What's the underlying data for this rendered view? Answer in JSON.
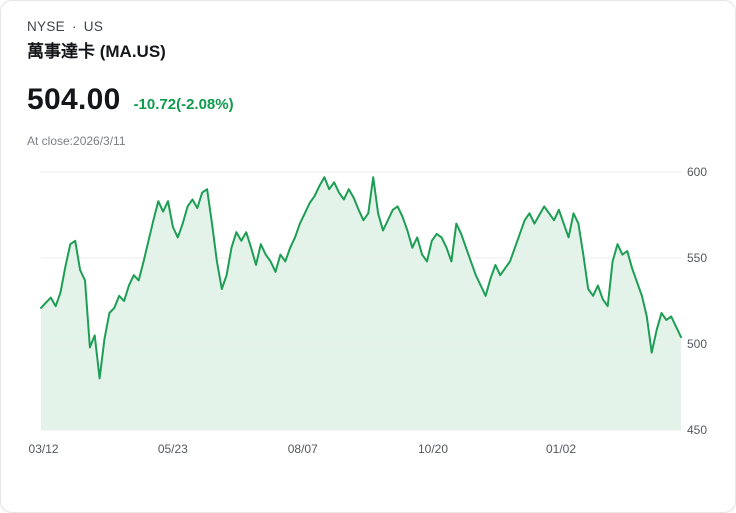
{
  "header": {
    "exchange": "NYSE",
    "separator": "·",
    "region": "US",
    "title": "萬事達卡 (MA.US)",
    "price": "504.00",
    "change": "-10.72(-2.08%)",
    "close_info": "At close:2026/3/11"
  },
  "colors": {
    "line": "#1d9e54",
    "fill": "#e3f3e9",
    "change": "#0e9b4c",
    "grid": "#ececec",
    "axis_text": "#55585e"
  },
  "chart_data": {
    "type": "area",
    "title": "MA.US one-year price history",
    "xlabel": "",
    "ylabel": "",
    "ylim": [
      450,
      600
    ],
    "yticks": [
      600,
      550,
      500,
      450
    ],
    "grid": "horizontal",
    "legend": "none",
    "xticks": [
      {
        "label": "03/12",
        "pos": 0.004
      },
      {
        "label": "05/23",
        "pos": 0.206
      },
      {
        "label": "08/07",
        "pos": 0.409
      },
      {
        "label": "10/20",
        "pos": 0.6125
      },
      {
        "label": "01/02",
        "pos": 0.8125
      }
    ],
    "values": [
      521,
      524,
      527,
      522,
      530,
      545,
      558,
      560,
      543,
      537,
      498,
      505,
      480,
      503,
      518,
      521,
      528,
      525,
      534,
      540,
      537,
      548,
      560,
      572,
      583,
      577,
      583,
      568,
      562,
      570,
      580,
      584,
      579,
      588,
      590,
      570,
      548,
      532,
      540,
      556,
      565,
      560,
      565,
      556,
      546,
      558,
      552,
      548,
      542,
      552,
      548,
      556,
      562,
      570,
      576,
      582,
      586,
      592,
      597,
      590,
      594,
      588,
      584,
      590,
      585,
      578,
      572,
      576,
      597,
      576,
      566,
      572,
      578,
      580,
      574,
      566,
      556,
      562,
      552,
      548,
      560,
      564,
      562,
      556,
      548,
      570,
      564,
      556,
      548,
      540,
      534,
      528,
      538,
      546,
      540,
      544,
      548,
      556,
      564,
      572,
      576,
      570,
      575,
      580,
      576,
      572,
      578,
      570,
      562,
      576,
      570,
      552,
      532,
      528,
      534,
      526,
      522,
      548,
      558,
      552,
      554,
      544,
      536,
      528,
      516,
      495,
      508,
      518,
      514,
      516,
      510,
      504
    ]
  }
}
